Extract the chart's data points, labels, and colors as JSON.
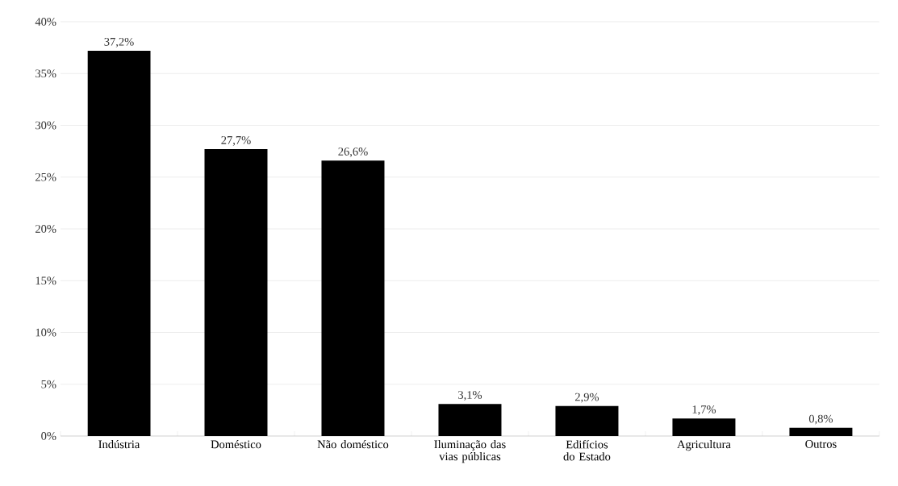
{
  "chart_data": {
    "type": "bar",
    "categories": [
      "Indústria",
      "Doméstico",
      "Não doméstico",
      "Iluminação das vias públicas",
      "Edifícios do Estado",
      "Agricultura",
      "Outros"
    ],
    "values": [
      37.2,
      27.7,
      26.6,
      3.1,
      2.9,
      1.7,
      0.8
    ],
    "value_labels": [
      "37,2%",
      "27,7%",
      "26,6%",
      "3,1%",
      "2,9%",
      "1,7%",
      "0,8%"
    ],
    "color": "#000000",
    "ylim": [
      0,
      40
    ],
    "yticks": [
      {
        "value": 0,
        "label": "0%"
      },
      {
        "value": 5,
        "label": "5%"
      },
      {
        "value": 10,
        "label": "10%"
      },
      {
        "value": 15,
        "label": "15%"
      },
      {
        "value": 20,
        "label": "20%"
      },
      {
        "value": 25,
        "label": "25%"
      },
      {
        "value": 30,
        "label": "30%"
      },
      {
        "value": 35,
        "label": "35%"
      },
      {
        "value": 40,
        "label": "40%"
      }
    ],
    "grid": "y"
  }
}
